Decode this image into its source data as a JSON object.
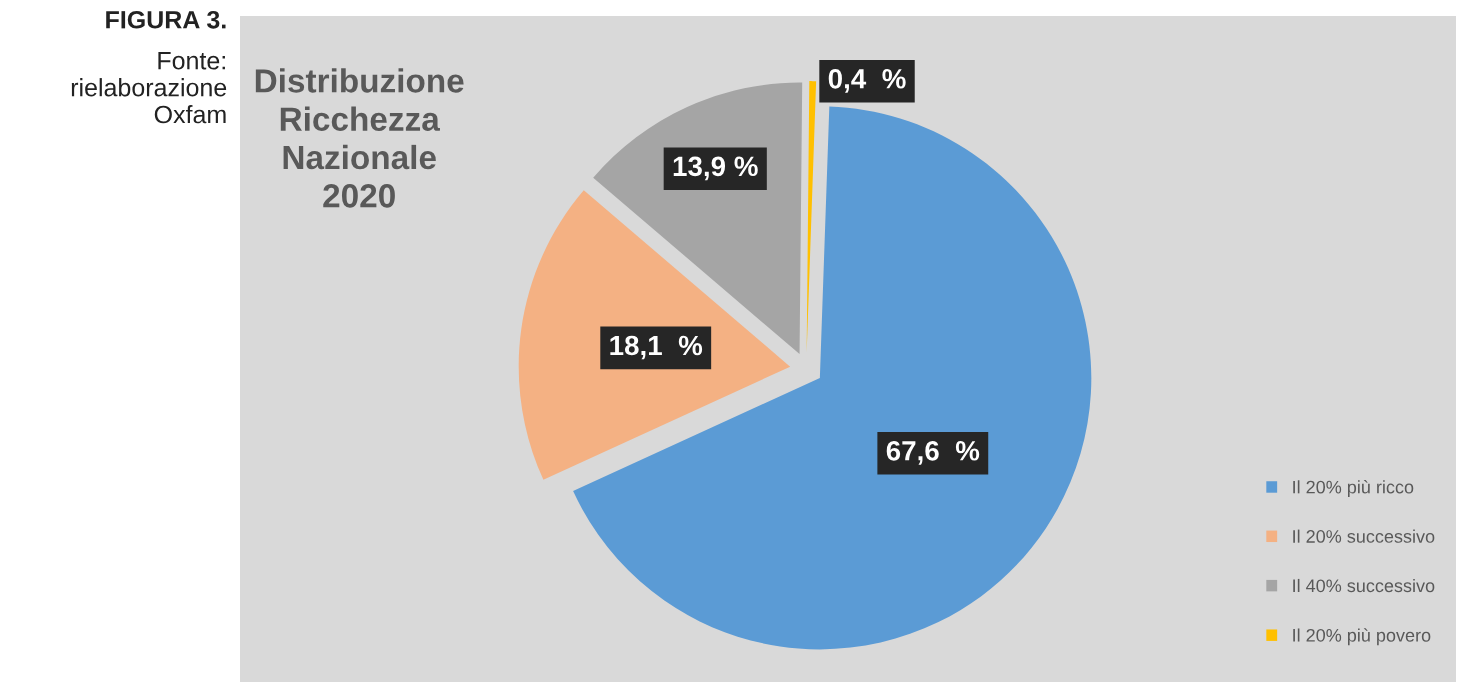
{
  "chart_data": {
    "type": "pie",
    "title": "Distribuzione\nRicchezza\nNazionale\n2020",
    "categories": [
      "Il 20% più ricco",
      "Il 20% successivo",
      "Il 40% successivo",
      "Il 20% più povero"
    ],
    "values": [
      67.6,
      18.1,
      13.9,
      0.4
    ],
    "colors": [
      "#5b9bd5",
      "#f4b183",
      "#a5a5a5",
      "#ffc000"
    ],
    "value_labels": [
      "67,6  %",
      "18,1  %",
      "13,9 %",
      "0,4  %"
    ],
    "legend": "bottom right",
    "annotations": [
      "FIGURA 3.",
      "Fonte: rielaborazione Oxfam"
    ]
  }
}
